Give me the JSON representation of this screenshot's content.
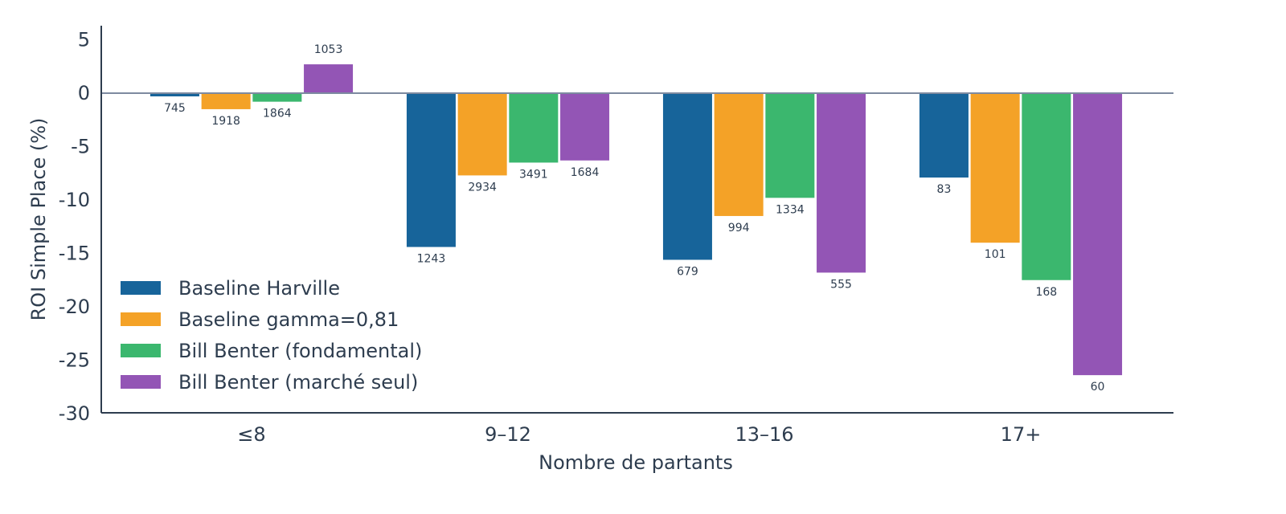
{
  "chart_data": {
    "type": "bar",
    "xlabel": "Nombre de partants",
    "ylabel": "ROI Simple Place (%)",
    "ylim": [
      -30,
      6
    ],
    "yticks": [
      5,
      0,
      -5,
      -10,
      -15,
      -20,
      -25,
      -30
    ],
    "grid": false,
    "legend_position": "bottom-left",
    "categories": [
      "≤8",
      "9–12",
      "13–16",
      "17+"
    ],
    "series": [
      {
        "name": "Baseline Harville",
        "color": "#17649a",
        "values": [
          -0.3,
          -14.4,
          -15.6,
          -7.9
        ],
        "labels": [
          "745",
          "1243",
          "679",
          "83"
        ]
      },
      {
        "name": "Baseline gamma=0,81",
        "color": "#f4a227",
        "values": [
          -1.5,
          -7.7,
          -11.5,
          -14.0
        ],
        "labels": [
          "1918",
          "2934",
          "994",
          "101"
        ]
      },
      {
        "name": "Bill Benter (fondamental)",
        "color": "#3bb76e",
        "values": [
          -0.8,
          -6.5,
          -9.8,
          -17.5
        ],
        "labels": [
          "1864",
          "3491",
          "1334",
          "168"
        ]
      },
      {
        "name": "Bill Benter (marché seul)",
        "color": "#9355b5",
        "values": [
          2.7,
          -6.3,
          -16.8,
          -26.4
        ],
        "labels": [
          "1053",
          "1684",
          "555",
          "60"
        ]
      }
    ]
  }
}
